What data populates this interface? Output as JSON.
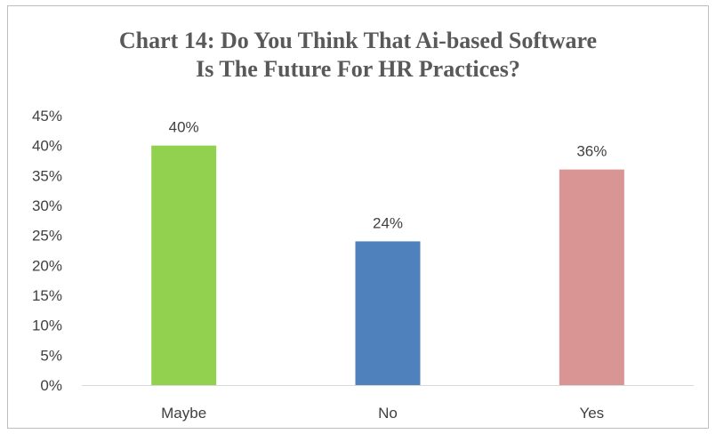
{
  "chart_data": {
    "type": "bar",
    "title_lines": [
      "Chart 14: Do You Think That Ai-based Software",
      "Is The Future For HR Practices?"
    ],
    "categories": [
      "Maybe",
      "No",
      "Yes"
    ],
    "values": [
      40,
      24,
      36
    ],
    "value_labels": [
      "40%",
      "24%",
      "36%"
    ],
    "bar_colors": [
      "#92d050",
      "#4f81bd",
      "#d99594"
    ],
    "y_ticks": [
      "0%",
      "5%",
      "10%",
      "15%",
      "20%",
      "25%",
      "30%",
      "35%",
      "40%",
      "45%"
    ],
    "ylim": [
      0,
      45
    ],
    "xlabel": "",
    "ylabel": "",
    "grid": false,
    "legend": "none"
  }
}
